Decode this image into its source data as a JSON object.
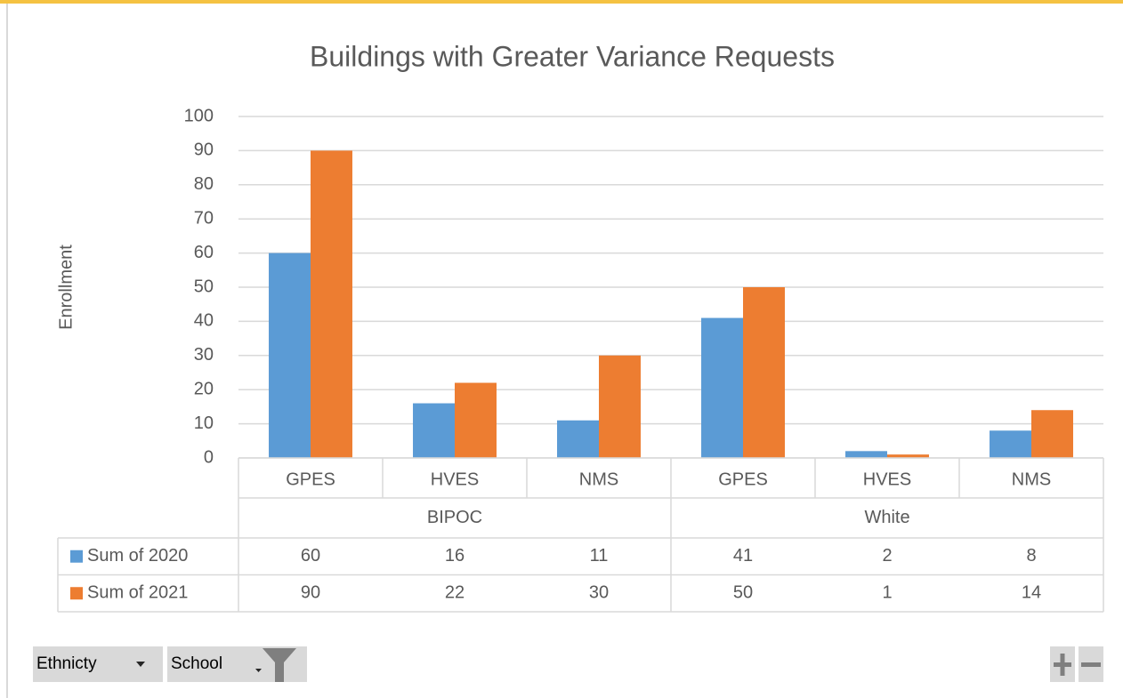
{
  "chart_data": {
    "type": "bar",
    "title": "Buildings with Greater Variance Requests",
    "y_label": "Enrollment",
    "groups": [
      {
        "name": "BIPOC",
        "categories": [
          "GPES",
          "HVES",
          "NMS"
        ]
      },
      {
        "name": "White",
        "categories": [
          "GPES",
          "HVES",
          "NMS"
        ]
      }
    ],
    "series": [
      {
        "name": "Sum of 2020",
        "color": "#5b9bd5",
        "values": [
          60,
          16,
          11,
          41,
          2,
          8
        ]
      },
      {
        "name": "Sum of 2021",
        "color": "#ed7d31",
        "values": [
          90,
          22,
          30,
          50,
          1,
          14
        ]
      }
    ],
    "ylim": [
      0,
      100
    ],
    "yticks": [
      0,
      10,
      20,
      30,
      40,
      50,
      60,
      70,
      80,
      90,
      100
    ],
    "grid": true,
    "data_table": true,
    "field_buttons": [
      "Ethnicty",
      "School"
    ]
  }
}
